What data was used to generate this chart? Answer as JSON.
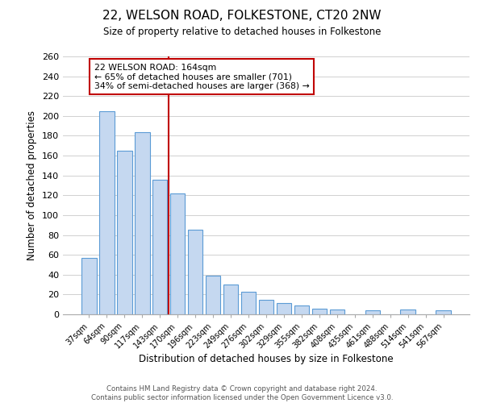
{
  "title": "22, WELSON ROAD, FOLKESTONE, CT20 2NW",
  "subtitle": "Size of property relative to detached houses in Folkestone",
  "xlabel": "Distribution of detached houses by size in Folkestone",
  "ylabel": "Number of detached properties",
  "footer_line1": "Contains HM Land Registry data © Crown copyright and database right 2024.",
  "footer_line2": "Contains public sector information licensed under the Open Government Licence v3.0.",
  "bar_labels": [
    "37sqm",
    "64sqm",
    "90sqm",
    "117sqm",
    "143sqm",
    "170sqm",
    "196sqm",
    "223sqm",
    "249sqm",
    "276sqm",
    "302sqm",
    "329sqm",
    "355sqm",
    "382sqm",
    "408sqm",
    "435sqm",
    "461sqm",
    "488sqm",
    "514sqm",
    "541sqm",
    "567sqm"
  ],
  "bar_values": [
    57,
    205,
    165,
    184,
    136,
    122,
    85,
    39,
    30,
    23,
    15,
    11,
    9,
    6,
    5,
    0,
    4,
    0,
    5,
    0,
    4
  ],
  "bar_color": "#c5d8f0",
  "bar_edge_color": "#5b9bd5",
  "ylim": [
    0,
    260
  ],
  "yticks": [
    0,
    20,
    40,
    60,
    80,
    100,
    120,
    140,
    160,
    180,
    200,
    220,
    240,
    260
  ],
  "vline_color": "#c00000",
  "annotation_title": "22 WELSON ROAD: 164sqm",
  "annotation_line2": "← 65% of detached houses are smaller (701)",
  "annotation_line3": "34% of semi-detached houses are larger (368) →",
  "annotation_box_color": "#c00000",
  "grid_color": "#d0d0d0",
  "background_color": "#ffffff",
  "fig_width": 6.0,
  "fig_height": 5.0
}
